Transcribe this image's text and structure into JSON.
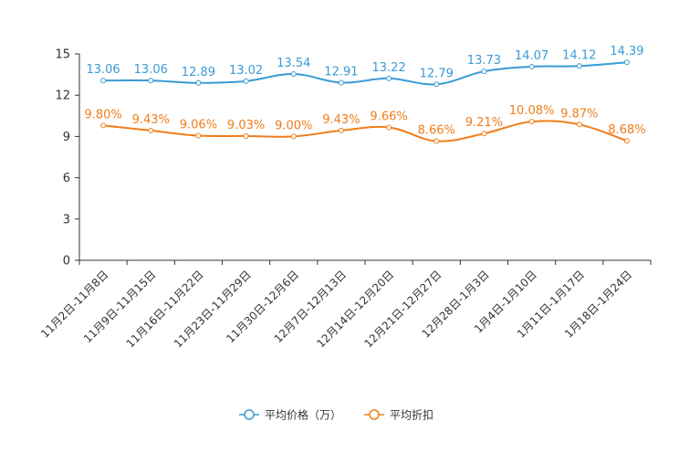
{
  "chart_data": {
    "type": "line",
    "title": "",
    "categories": [
      "11月2日-11月8日",
      "11月9日-11月15日",
      "11月16日-11月22日",
      "11月23日-11月29日",
      "11月30日-12月6日",
      "12月7日-12月13日",
      "12月14日-12月20日",
      "12月21日-12月27日",
      "12月28日-1月3日",
      "1月4日-1月10日",
      "1月11日-1月17日",
      "1月18日-1月24日"
    ],
    "ylim": [
      0,
      15
    ],
    "yticks": [
      0,
      3,
      6,
      9,
      12,
      15
    ],
    "series": [
      {
        "name": "平均价格（万）",
        "color": "#3a9ad6",
        "values": [
          13.06,
          13.06,
          12.89,
          13.02,
          13.54,
          12.91,
          13.22,
          12.79,
          13.73,
          14.07,
          14.12,
          14.39
        ],
        "labels": [
          "13.06",
          "13.06",
          "12.89",
          "13.02",
          "13.54",
          "12.91",
          "13.22",
          "12.79",
          "13.73",
          "14.07",
          "14.12",
          "14.39"
        ]
      },
      {
        "name": "平均折扣",
        "color": "#f07d1a",
        "values": [
          9.8,
          9.43,
          9.06,
          9.03,
          9.0,
          9.43,
          9.66,
          8.66,
          9.21,
          10.08,
          9.87,
          8.68
        ],
        "labels": [
          "9.80%",
          "9.43%",
          "9.06%",
          "9.03%",
          "9.00%",
          "9.43%",
          "9.66%",
          "8.66%",
          "9.21%",
          "10.08%",
          "9.87%",
          "8.68%"
        ]
      }
    ],
    "legend_position": "bottom-center"
  }
}
